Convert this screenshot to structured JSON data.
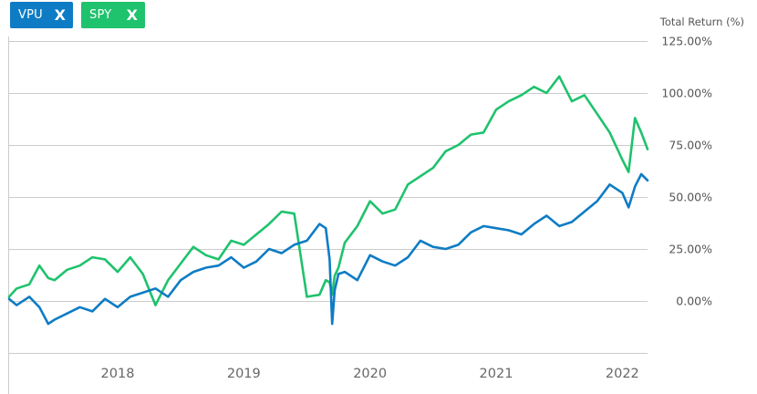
{
  "legend": {
    "items": [
      {
        "label": "VPU",
        "close_label": "X",
        "color": "#0e7cc4"
      },
      {
        "label": "SPY",
        "close_label": "X",
        "color": "#1fc26d"
      }
    ]
  },
  "chart_data": {
    "type": "line",
    "ylabel": "Total Return (%)",
    "y_ticks": [
      "125.00%",
      "100.00%",
      "75.00%",
      "50.00%",
      "25.00%",
      "0.00%"
    ],
    "y_tick_values": [
      125,
      100,
      75,
      50,
      25,
      0
    ],
    "ylim": [
      -25,
      130
    ],
    "x_ticks": [
      "2018",
      "2019",
      "2020",
      "2021",
      "2022"
    ],
    "x_tick_values": [
      2018.0,
      2019.0,
      2020.0,
      2021.0,
      2022.0
    ],
    "xlim": [
      2017.14,
      2022.2
    ],
    "grid": "horizontal",
    "series": [
      {
        "name": "VPU",
        "color": "#0e7cc4",
        "x": [
          2017.14,
          2017.2,
          2017.3,
          2017.38,
          2017.45,
          2017.5,
          2017.6,
          2017.7,
          2017.8,
          2017.9,
          2018.0,
          2018.1,
          2018.2,
          2018.3,
          2018.4,
          2018.5,
          2018.6,
          2018.7,
          2018.8,
          2018.9,
          2019.0,
          2019.1,
          2019.2,
          2019.3,
          2019.4,
          2019.5,
          2019.6,
          2019.65,
          2019.68,
          2019.7,
          2019.72,
          2019.75,
          2019.8,
          2019.9,
          2020.0,
          2020.1,
          2020.2,
          2020.3,
          2020.4,
          2020.5,
          2020.6,
          2020.7,
          2020.8,
          2020.9,
          2021.0,
          2021.1,
          2021.2,
          2021.3,
          2021.4,
          2021.5,
          2021.6,
          2021.7,
          2021.8,
          2021.9,
          2022.0,
          2022.05,
          2022.1,
          2022.15,
          2022.2
        ],
        "y": [
          1,
          -2,
          2,
          -3,
          -11,
          -9,
          -6,
          -3,
          -5,
          1,
          -3,
          2,
          4,
          6,
          2,
          10,
          14,
          16,
          17,
          21,
          16,
          19,
          25,
          23,
          27,
          29,
          37,
          35,
          20,
          -11,
          5,
          13,
          14,
          10,
          22,
          19,
          17,
          21,
          29,
          26,
          25,
          27,
          33,
          36,
          35,
          34,
          32,
          37,
          41,
          36,
          38,
          43,
          48,
          56,
          52,
          45,
          55,
          61,
          58
        ]
      },
      {
        "name": "SPY",
        "color": "#1fc26d",
        "x": [
          2017.14,
          2017.2,
          2017.3,
          2017.38,
          2017.45,
          2017.5,
          2017.6,
          2017.7,
          2017.8,
          2017.9,
          2018.0,
          2018.1,
          2018.2,
          2018.3,
          2018.4,
          2018.5,
          2018.6,
          2018.7,
          2018.8,
          2018.9,
          2019.0,
          2019.1,
          2019.2,
          2019.3,
          2019.4,
          2019.5,
          2019.6,
          2019.65,
          2019.68,
          2019.7,
          2019.72,
          2019.75,
          2019.8,
          2019.9,
          2020.0,
          2020.1,
          2020.2,
          2020.3,
          2020.4,
          2020.5,
          2020.6,
          2020.7,
          2020.8,
          2020.9,
          2021.0,
          2021.1,
          2021.2,
          2021.3,
          2021.4,
          2021.5,
          2021.6,
          2021.7,
          2021.8,
          2021.9,
          2022.0,
          2022.05,
          2022.1,
          2022.15,
          2022.2
        ],
        "y": [
          2,
          6,
          8,
          17,
          11,
          10,
          15,
          17,
          21,
          20,
          14,
          21,
          13,
          -2,
          10,
          18,
          26,
          22,
          20,
          29,
          27,
          32,
          37,
          43,
          42,
          2,
          3,
          10,
          9,
          3,
          12,
          16,
          28,
          36,
          48,
          42,
          44,
          56,
          60,
          64,
          72,
          75,
          80,
          81,
          92,
          96,
          99,
          103,
          100,
          108,
          96,
          99,
          90,
          81,
          68,
          62,
          88,
          81,
          73
        ]
      }
    ]
  }
}
